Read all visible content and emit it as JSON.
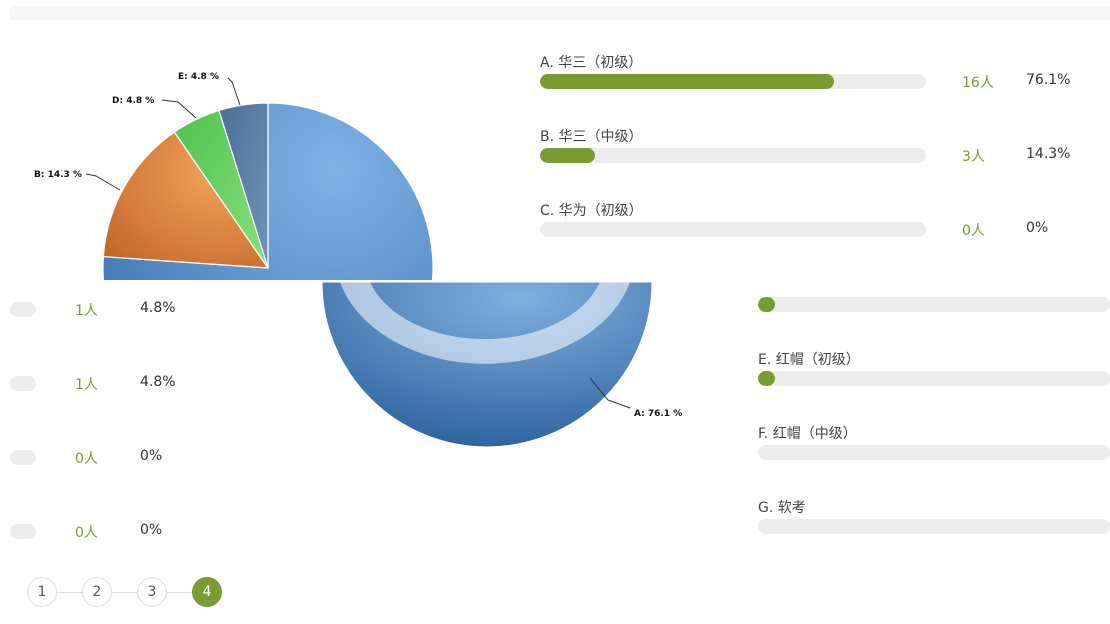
{
  "chart_data": {
    "type": "pie",
    "title": "",
    "slices": [
      {
        "label": "A",
        "value": 76.1,
        "display": "A: 76.1 %",
        "color": "#5b8fcb"
      },
      {
        "label": "B",
        "value": 14.3,
        "display": "B: 14.3 %",
        "color": "#e0893e"
      },
      {
        "label": "C",
        "value": 0,
        "display": "",
        "color": "#999999"
      },
      {
        "label": "D",
        "value": 4.8,
        "display": "D: 4.8 %",
        "color": "#66cc66"
      },
      {
        "label": "E",
        "value": 4.8,
        "display": "E: 4.8 %",
        "color": "#5a82ad"
      }
    ]
  },
  "options_top": [
    {
      "label": "A. 华三（初级）",
      "count": "16人",
      "percent": "76.1%",
      "fill": 0.761
    },
    {
      "label": "B. 华三（中级）",
      "count": "3人",
      "percent": "14.3%",
      "fill": 0.143
    },
    {
      "label": "C. 华为（初级）",
      "count": "0人",
      "percent": "0%",
      "fill": 0
    }
  ],
  "options_left": [
    {
      "count": "1人",
      "percent": "4.8%"
    },
    {
      "count": "1人",
      "percent": "4.8%"
    },
    {
      "count": "0人",
      "percent": "0%"
    },
    {
      "count": "0人",
      "percent": "0%"
    }
  ],
  "options_right": [
    {
      "label": "",
      "fill": 0.048
    },
    {
      "label": "E. 红帽（初级）",
      "fill": 0.048
    },
    {
      "label": "F. 红帽（中级）",
      "fill": 0
    },
    {
      "label": "G. 软考",
      "fill": 0
    }
  ],
  "pagination": {
    "pages": [
      "1",
      "2",
      "3",
      "4"
    ],
    "current": "4"
  }
}
